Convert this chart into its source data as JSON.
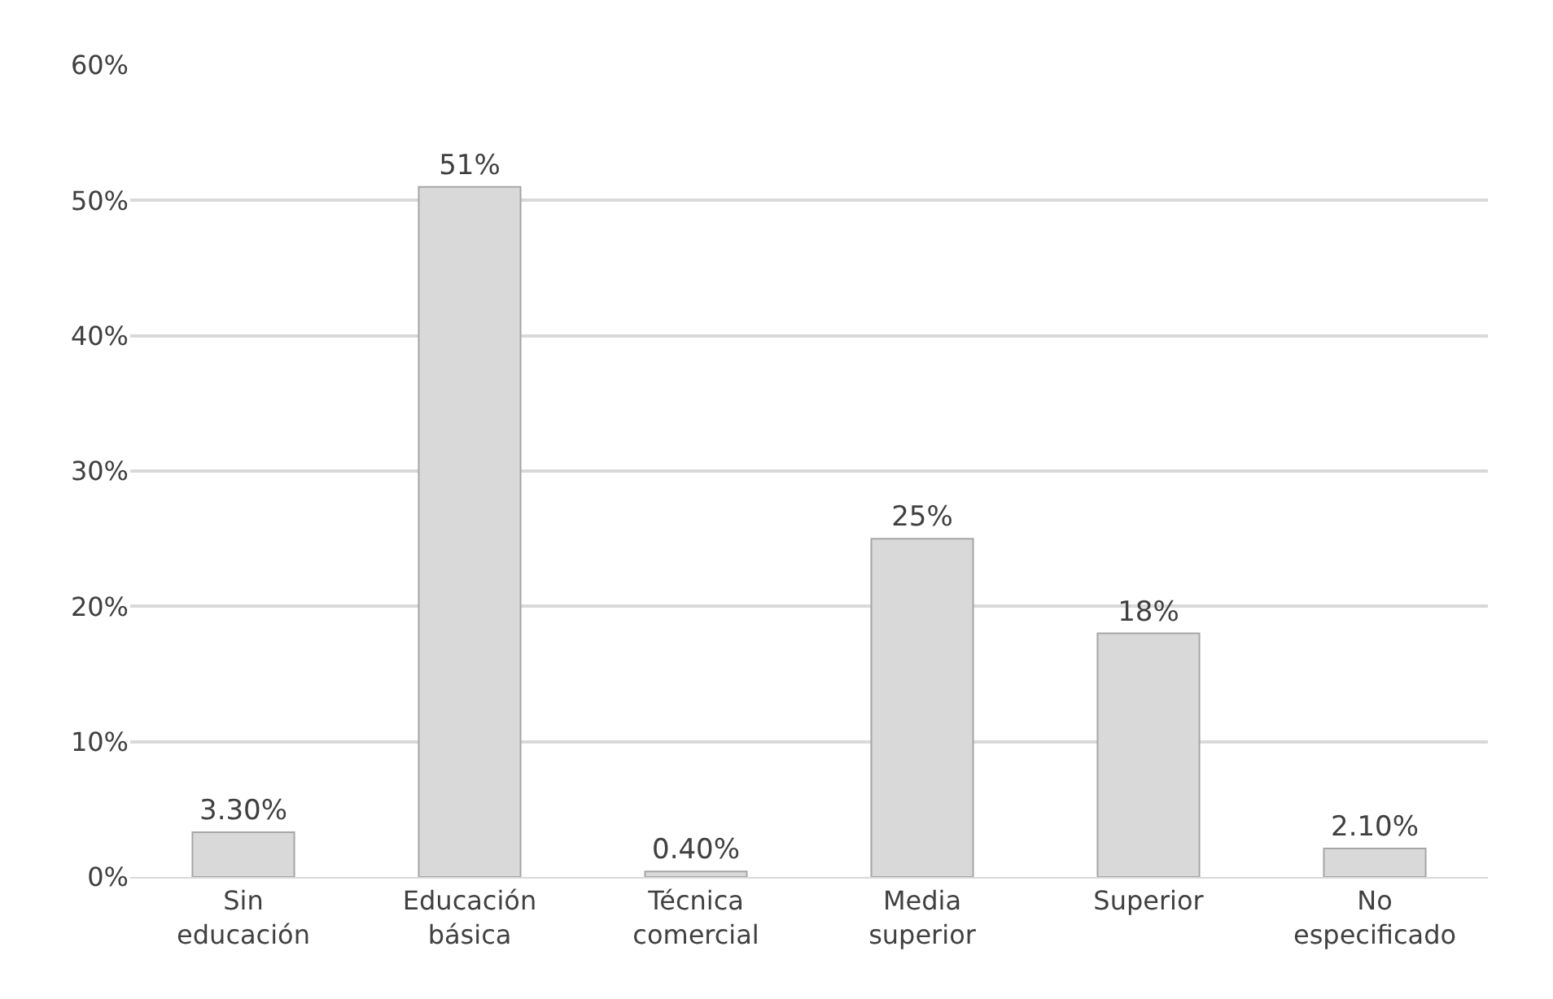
{
  "chart_data": {
    "type": "bar",
    "categories": [
      "Sin educación",
      "Educación básica",
      "Técnica comercial",
      "Media superior",
      "Superior",
      "No especificado"
    ],
    "values": [
      3.3,
      51,
      0.4,
      25,
      18,
      2.1
    ],
    "value_labels": [
      "3.30%",
      "51%",
      "0.40%",
      "25%",
      "18%",
      "2.10%"
    ],
    "color": "#d9d9d9",
    "ylim": [
      0,
      60
    ],
    "yticks": [
      {
        "value": 0,
        "label": "0%"
      },
      {
        "value": 10,
        "label": "10%"
      },
      {
        "value": 20,
        "label": "20%"
      },
      {
        "value": 30,
        "label": "30%"
      },
      {
        "value": 40,
        "label": "40%"
      },
      {
        "value": 50,
        "label": "50%"
      },
      {
        "value": 60,
        "label": "60%"
      }
    ],
    "grid": "y"
  }
}
